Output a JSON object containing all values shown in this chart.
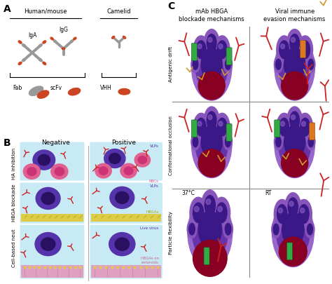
{
  "bg_color": "#ffffff",
  "panel_A_title": "A",
  "panel_B_title": "B",
  "panel_C_title": "C",
  "human_mouse_label": "Human/mouse",
  "camelid_label": "Camelid",
  "IgA_label": "IgA",
  "IgG_label": "IgG",
  "Fab_label": "Fab",
  "scFv_label": "scFv",
  "VHH_label": "VHH",
  "negative_label": "Negative",
  "positive_label": "Positive",
  "HA_inhibition_label": "HA inhibition",
  "HBGA_blockade_label": "HBGA blockade",
  "cell_based_neut_label": "Cell-based neut",
  "VLPs_label": "VLPs",
  "RBCs_label": "RBCs",
  "HBGAs_label": "HBGAs",
  "Live_virus_label": "Live virus",
  "HBGAs_on_enteroids_label": "HBGAs on\nenteroids",
  "mAb_HBGA_label": "mAb HBGA\nblockade mechanisms",
  "viral_immune_label": "Viral immune\nevasion mechanisms",
  "antigenic_drift_label": "Antigenic drift",
  "conformational_occlusion_label": "Conformational occlusion",
  "particle_flexibility_label": "Particle flexibility",
  "temp_37_label": "37°C",
  "temp_RT_label": "RT",
  "color_red": "#cc2222",
  "color_pink": "#e06090",
  "color_deep_pink": "#cc3377",
  "color_purple_outer": "#8855cc",
  "color_purple_mid": "#5533aa",
  "color_purple_dark": "#2a1060",
  "color_purple_body": "#6644bb",
  "color_dark_maroon": "#770011",
  "color_gray": "#888888",
  "color_gold": "#cc9933",
  "color_gold_dark": "#aa8811",
  "color_green": "#33aa44",
  "color_orange": "#dd7722",
  "color_light_blue": "#c8eaf5",
  "color_yellow_hbga": "#ddcc44",
  "color_enteroid": "#e0a0c0",
  "color_black": "#111111",
  "color_light_purple": "#bb99ee",
  "color_very_light_purple": "#cc99ff"
}
